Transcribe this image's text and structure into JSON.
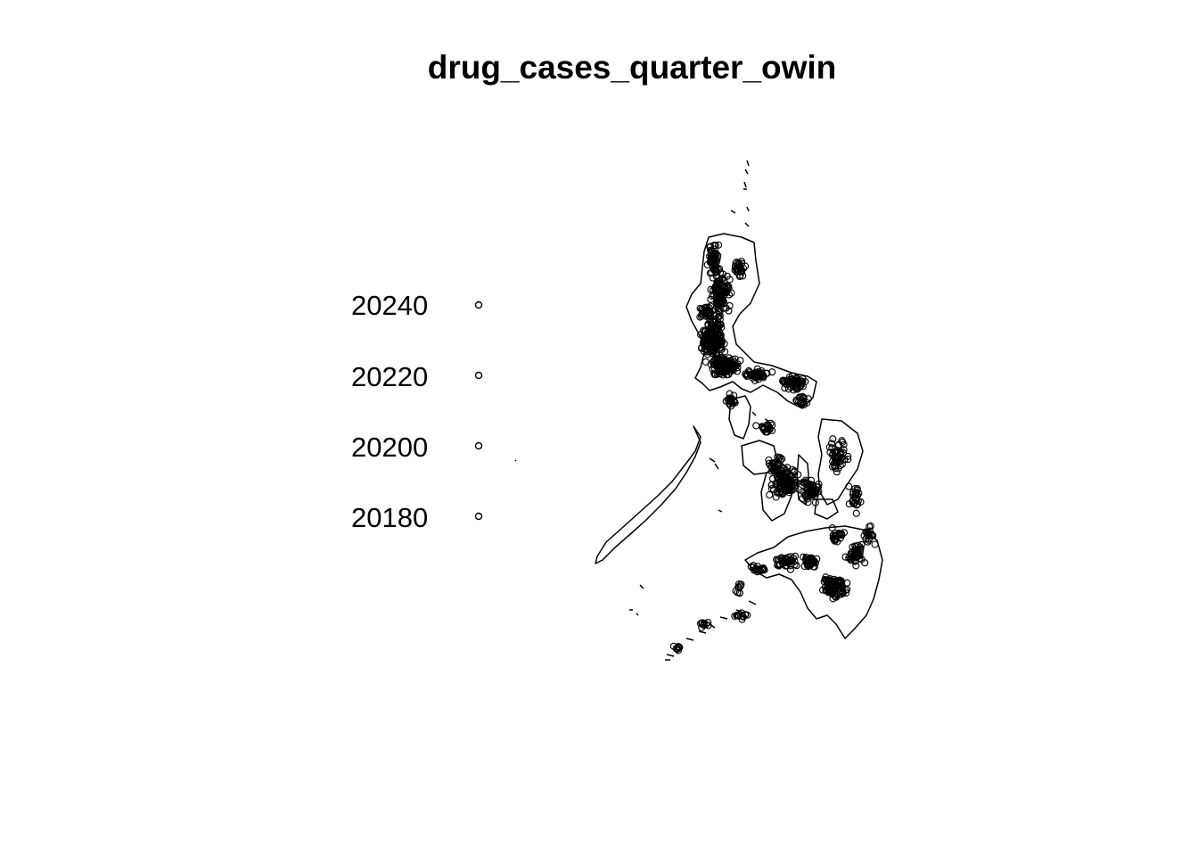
{
  "title": "drug_cases_quarter_owin",
  "legend": {
    "items": [
      {
        "label": "20240"
      },
      {
        "label": "20220"
      },
      {
        "label": "20200"
      },
      {
        "label": "20180"
      }
    ]
  },
  "colors": {
    "outline": "#000000",
    "background": "#ffffff"
  }
}
